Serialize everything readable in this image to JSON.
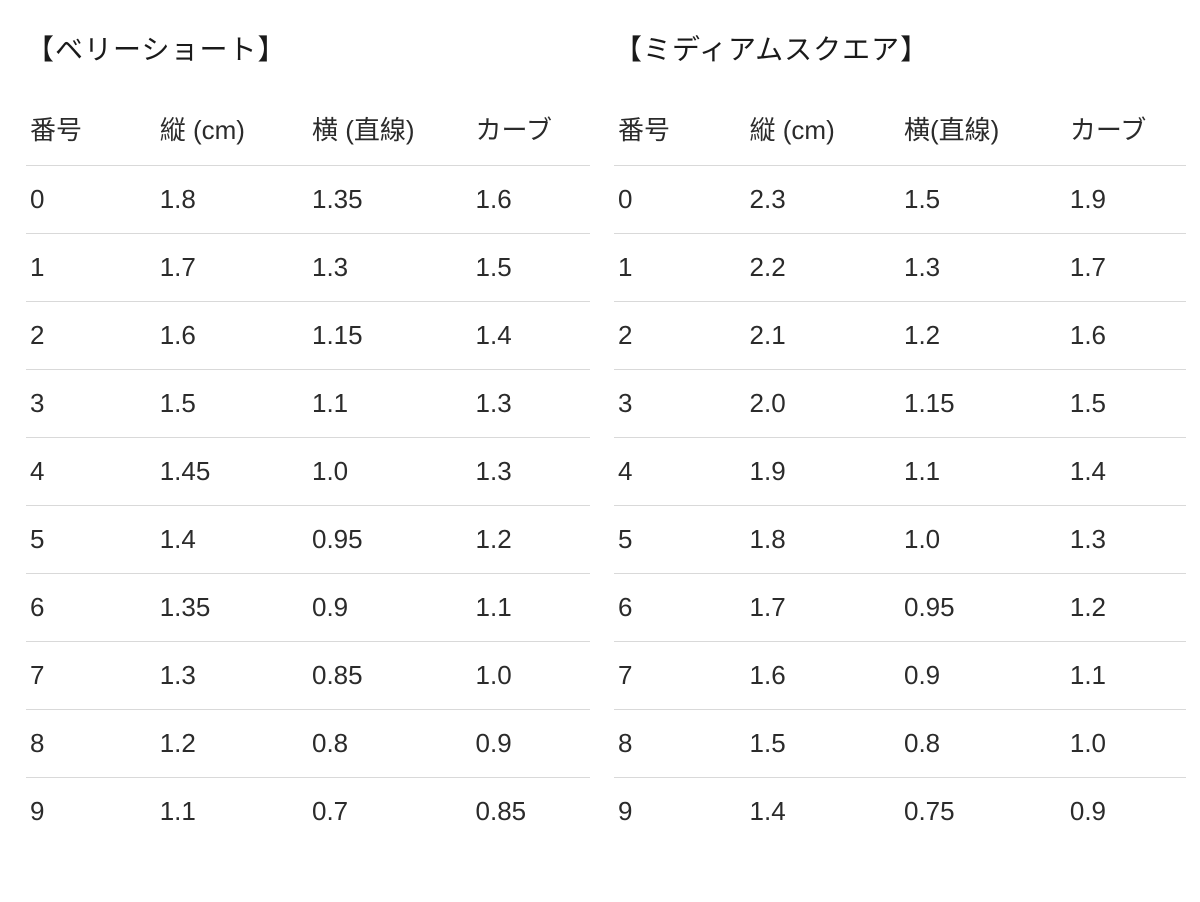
{
  "left": {
    "title": "【ベリーショート】",
    "columns": [
      "番号",
      "縦 (cm)",
      "横 (直線)",
      "カーブ"
    ],
    "rows": [
      [
        "0",
        "1.8",
        "1.35",
        "1.6"
      ],
      [
        "1",
        "1.7",
        "1.3",
        "1.5"
      ],
      [
        "2",
        "1.6",
        "1.15",
        "1.4"
      ],
      [
        "3",
        "1.5",
        "1.1",
        "1.3"
      ],
      [
        "4",
        "1.45",
        "1.0",
        "1.3"
      ],
      [
        "5",
        "1.4",
        "0.95",
        "1.2"
      ],
      [
        "6",
        "1.35",
        "0.9",
        "1.1"
      ],
      [
        "7",
        "1.3",
        "0.85",
        "1.0"
      ],
      [
        "8",
        "1.2",
        "0.8",
        "0.9"
      ],
      [
        "9",
        "1.1",
        "0.7",
        "0.85"
      ]
    ]
  },
  "right": {
    "title": "【ミディアムスクエア】",
    "columns": [
      "番号",
      "縦 (cm)",
      "横(直線)",
      "カーブ"
    ],
    "rows": [
      [
        "0",
        "2.3",
        "1.5",
        "1.9"
      ],
      [
        "1",
        "2.2",
        "1.3",
        "1.7"
      ],
      [
        "2",
        "2.1",
        "1.2",
        "1.6"
      ],
      [
        "3",
        "2.0",
        "1.15",
        "1.5"
      ],
      [
        "4",
        "1.9",
        "1.1",
        "1.4"
      ],
      [
        "5",
        "1.8",
        "1.0",
        "1.3"
      ],
      [
        "6",
        "1.7",
        "0.95",
        "1.2"
      ],
      [
        "7",
        "1.6",
        "0.9",
        "1.1"
      ],
      [
        "8",
        "1.5",
        "0.8",
        "1.0"
      ],
      [
        "9",
        "1.4",
        "0.75",
        "0.9"
      ]
    ]
  },
  "style": {
    "background_color": "#ffffff",
    "text_color": "#2b2b2b",
    "border_color": "#d9d9d9",
    "title_fontsize": 28,
    "cell_fontsize": 26
  }
}
